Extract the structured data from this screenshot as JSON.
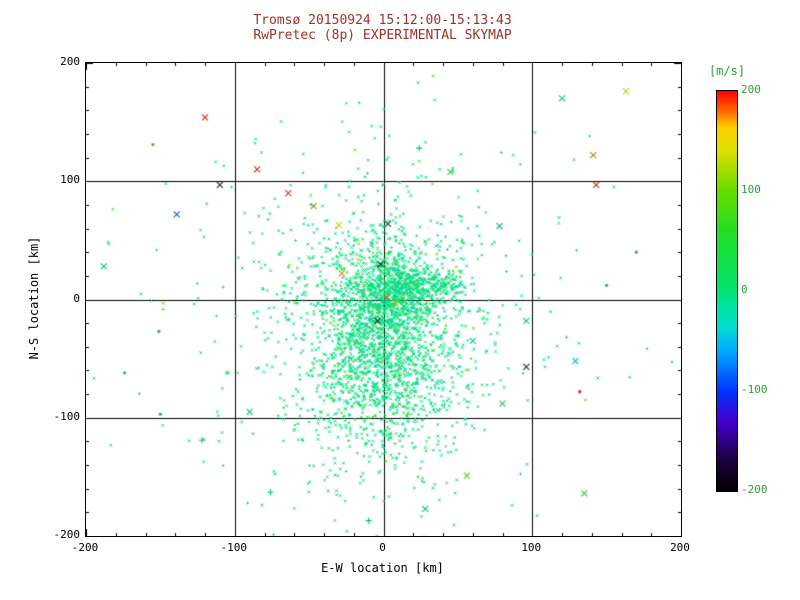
{
  "styles": {
    "title_color": "#9a3226",
    "axis_text_color": "#000000",
    "colorbar_text_color": "#2f9e33",
    "background": "#ffffff"
  },
  "chart_data": {
    "type": "scatter",
    "title": "Tromsø 20150924 15:12:00-15:13:43",
    "subtitle": "RwPretec (8p) EXPERIMENTAL SKYMAP",
    "xlabel": "E-W location [km]",
    "ylabel": "N-S location [km]",
    "xlim": [
      -200,
      200
    ],
    "ylim": [
      -200,
      200
    ],
    "xticks": [
      -200,
      -100,
      0,
      100,
      200
    ],
    "yticks": [
      -200,
      -100,
      0,
      100,
      200
    ],
    "minor_tick_step": 20,
    "grid": true,
    "n_points_estimate": 3100,
    "colorbar": {
      "label": "[m/s]",
      "range": [
        -200,
        200
      ],
      "ticks": [
        200,
        100,
        0,
        -100,
        -200
      ],
      "stops": [
        {
          "pos": 0.0,
          "color": "#000000"
        },
        {
          "pos": 0.075,
          "color": "#1c0040"
        },
        {
          "pos": 0.175,
          "color": "#4400cc"
        },
        {
          "pos": 0.25,
          "color": "#0033ff"
        },
        {
          "pos": 0.35,
          "color": "#00aaff"
        },
        {
          "pos": 0.41,
          "color": "#00ddd0"
        },
        {
          "pos": 0.47,
          "color": "#00e49a"
        },
        {
          "pos": 0.5,
          "color": "#00e470"
        },
        {
          "pos": 0.65,
          "color": "#22dd22"
        },
        {
          "pos": 0.75,
          "color": "#66dd00"
        },
        {
          "pos": 0.85,
          "color": "#dde000"
        },
        {
          "pos": 0.91,
          "color": "#ffcc00"
        },
        {
          "pos": 0.95,
          "color": "#ff6600"
        },
        {
          "pos": 1.0,
          "color": "#ff0000"
        }
      ]
    },
    "cluster_seed": 1337,
    "clusters": [
      {
        "count": 1500,
        "cx": -3,
        "cy": -28,
        "sx": 30,
        "sy": 52
      },
      {
        "count": 600,
        "cx": 2,
        "cy": 2,
        "sx": 13,
        "sy": 20
      },
      {
        "count": 260,
        "cx": 28,
        "cy": 12,
        "sx": 16,
        "sy": 7
      },
      {
        "count": 420,
        "cx": -2,
        "cy": -58,
        "sx": 24,
        "sy": 26
      },
      {
        "count": 380,
        "cx": 0,
        "cy": -15,
        "sx": 70,
        "sy": 85
      }
    ],
    "palette": [
      {
        "color": "#00E07E",
        "w": 0.66
      },
      {
        "color": "#00D898",
        "w": 0.12
      },
      {
        "color": "#2BDB57",
        "w": 0.12
      },
      {
        "color": "#00CDB2",
        "w": 0.06
      },
      {
        "color": "#55D822",
        "w": 0.04
      }
    ],
    "outliers": [
      {
        "x": -155,
        "y": 131,
        "c": "#e07818",
        "m": "d"
      },
      {
        "x": -120,
        "y": 154,
        "c": "#e02810",
        "m": "x"
      },
      {
        "x": -139,
        "y": 72,
        "c": "#1060e0",
        "m": "x"
      },
      {
        "x": -110,
        "y": 97,
        "c": "#282828",
        "m": "x"
      },
      {
        "x": -85,
        "y": 110,
        "c": "#e02810",
        "m": "x"
      },
      {
        "x": -64,
        "y": 90,
        "c": "#e03818",
        "m": "x"
      },
      {
        "x": -47,
        "y": 79,
        "c": "#8a9a10",
        "m": "x"
      },
      {
        "x": -30,
        "y": 63,
        "c": "#d8d020",
        "m": "x"
      },
      {
        "x": 45,
        "y": 108,
        "c": "#38c838",
        "m": "x"
      },
      {
        "x": 24,
        "y": 128,
        "c": "#00c878",
        "m": "+"
      },
      {
        "x": 120,
        "y": 170,
        "c": "#00d464",
        "m": "x"
      },
      {
        "x": 163,
        "y": 176,
        "c": "#c8c81e",
        "m": "x"
      },
      {
        "x": 141,
        "y": 122,
        "c": "#a88a10",
        "m": "x"
      },
      {
        "x": 143,
        "y": 97,
        "c": "#c03018",
        "m": "x"
      },
      {
        "x": -188,
        "y": 28,
        "c": "#00d464",
        "m": "x"
      },
      {
        "x": -151,
        "y": -27,
        "c": "#28b850",
        "m": "d"
      },
      {
        "x": -174,
        "y": -62,
        "c": "#20c060",
        "m": "d"
      },
      {
        "x": 78,
        "y": 62,
        "c": "#00b478",
        "m": "x"
      },
      {
        "x": 96,
        "y": -18,
        "c": "#00c0a8",
        "m": "x"
      },
      {
        "x": 129,
        "y": -52,
        "c": "#10c8c8",
        "m": "x"
      },
      {
        "x": 96,
        "y": -57,
        "c": "#1a3a1a",
        "m": "x"
      },
      {
        "x": 132,
        "y": -78,
        "c": "#e02810",
        "m": "d"
      },
      {
        "x": 80,
        "y": -88,
        "c": "#28c050",
        "m": "x"
      },
      {
        "x": -90,
        "y": -95,
        "c": "#00d464",
        "m": "x"
      },
      {
        "x": -122,
        "y": -119,
        "c": "#30b840",
        "m": "+"
      },
      {
        "x": 135,
        "y": -164,
        "c": "#28c858",
        "m": "x"
      },
      {
        "x": -76,
        "y": -163,
        "c": "#00c864",
        "m": "+"
      },
      {
        "x": -10,
        "y": -187,
        "c": "#00c864",
        "m": "+"
      },
      {
        "x": 28,
        "y": -177,
        "c": "#00c864",
        "m": "x"
      },
      {
        "x": 56,
        "y": -149,
        "c": "#58c810",
        "m": "x"
      },
      {
        "x": 3,
        "y": 64,
        "c": "#104a10",
        "m": "x"
      },
      {
        "x": -2,
        "y": 30,
        "c": "#0a300a",
        "m": "x"
      },
      {
        "x": -4,
        "y": -18,
        "c": "#222222",
        "m": "x"
      },
      {
        "x": 2,
        "y": 2,
        "c": "#c85a10",
        "m": "x"
      },
      {
        "x": -28,
        "y": 22,
        "c": "#e08818",
        "m": "x"
      },
      {
        "x": 8,
        "y": -3,
        "c": "#b8b810",
        "m": "x"
      },
      {
        "x": 60,
        "y": -35,
        "c": "#00bcbc",
        "m": "x"
      },
      {
        "x": -150,
        "y": -97,
        "c": "#20c060",
        "m": "d"
      },
      {
        "x": 170,
        "y": 40,
        "c": "#20c060",
        "m": "d"
      },
      {
        "x": 150,
        "y": 12,
        "c": "#20c060",
        "m": "d"
      }
    ]
  }
}
